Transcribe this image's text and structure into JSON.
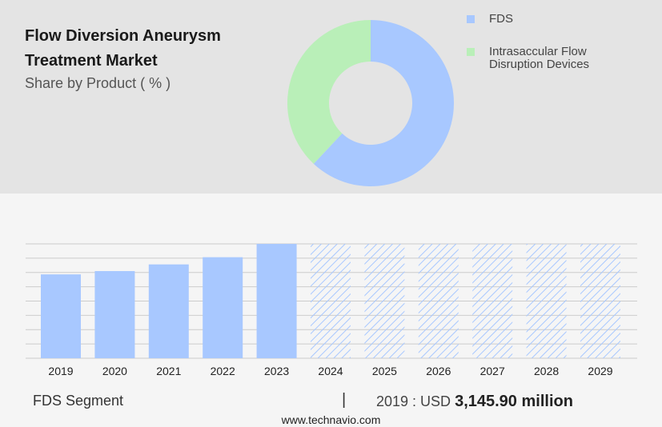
{
  "header": {
    "title": "Flow Diversion Aneurysm Treatment Market",
    "subtitle": "Share by Product ( % )"
  },
  "colors": {
    "fds": "#a8c8ff",
    "intrasaccular": "#b9efb8",
    "forecast_hatch": "#a8c8ff",
    "grid": "#cccccc"
  },
  "chart_data": [
    {
      "type": "pie",
      "style": "donut",
      "series": [
        {
          "name": "FDS",
          "value": 62,
          "color": "#a8c8ff"
        },
        {
          "name": "Intrasaccular Flow Disruption Devices",
          "value": 38,
          "color": "#b9efb8"
        }
      ],
      "legend_placement": "top-right"
    },
    {
      "type": "bar",
      "categories": [
        "2019",
        "2020",
        "2021",
        "2022",
        "2023",
        "2024",
        "2025",
        "2026",
        "2027",
        "2028",
        "2029"
      ],
      "values": [
        3145.9,
        3270,
        3520,
        3790,
        4290,
        null,
        null,
        null,
        null,
        null,
        null
      ],
      "forecast_categories": [
        "2024",
        "2025",
        "2026",
        "2027",
        "2028",
        "2029"
      ],
      "forecast_style": "hatched",
      "ylim": [
        0,
        4290
      ],
      "grid": true
    }
  ],
  "footer": {
    "segment_label": "FDS Segment",
    "separator": "|",
    "year_text": "2019 : USD",
    "value_text": "3,145.90 million",
    "website": "www.technavio.com"
  }
}
